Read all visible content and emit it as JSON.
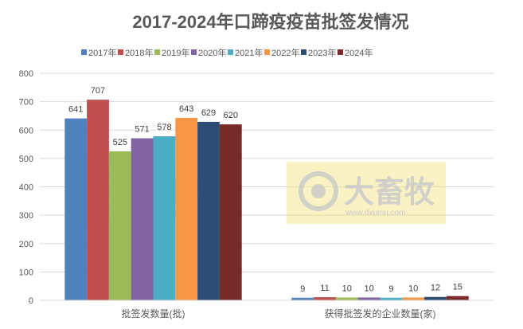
{
  "chart_data": {
    "type": "bar",
    "title": "2017-2024年口蹄疫疫苗批签发情况",
    "categories": [
      "批签发数量(批)",
      "获得批签发的企业数量(家)"
    ],
    "series": [
      {
        "name": "2017年",
        "color": "#4f81bd",
        "values": [
          641,
          9
        ]
      },
      {
        "name": "2018年",
        "color": "#c0504d",
        "values": [
          707,
          11
        ]
      },
      {
        "name": "2019年",
        "color": "#9bbb59",
        "values": [
          525,
          10
        ]
      },
      {
        "name": "2020年",
        "color": "#8064a2",
        "values": [
          571,
          10
        ]
      },
      {
        "name": "2021年",
        "color": "#4bacc6",
        "values": [
          578,
          9
        ]
      },
      {
        "name": "2022年",
        "color": "#f79646",
        "values": [
          643,
          10
        ]
      },
      {
        "name": "2023年",
        "color": "#2c4d75",
        "values": [
          629,
          12
        ]
      },
      {
        "name": "2024年",
        "color": "#772c2a",
        "values": [
          620,
          15
        ]
      }
    ],
    "ylim": [
      0,
      800
    ],
    "yticks": [
      0,
      100,
      200,
      300,
      400,
      500,
      600,
      700,
      800
    ],
    "grid": true,
    "legend": "top",
    "data_labels": true
  },
  "watermark": {
    "brand": "大畜牧",
    "url": "www.dxumu.com"
  }
}
